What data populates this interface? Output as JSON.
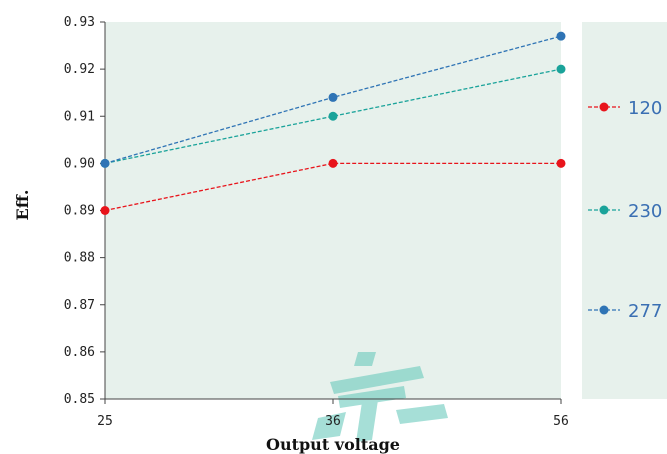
{
  "chart_data": {
    "type": "line",
    "title": "",
    "xlabel": "Output voltage",
    "ylabel": "Eff.",
    "categories": [
      "25",
      "36",
      "56"
    ],
    "ylim": [
      0.85,
      0.93
    ],
    "yticks": [
      "0.85",
      "0.86",
      "0.87",
      "0.88",
      "0.89",
      "0.90",
      "0.91",
      "0.92",
      "0.93"
    ],
    "grid": false,
    "legend_position": "right",
    "series": [
      {
        "name": "120",
        "color": "#e8141b",
        "values": [
          0.89,
          0.9,
          0.9
        ]
      },
      {
        "name": "230",
        "color": "#1aa39a",
        "values": [
          0.9,
          0.91,
          0.92
        ]
      },
      {
        "name": "277",
        "color": "#2f74b5",
        "values": [
          0.9,
          0.914,
          0.927
        ]
      }
    ],
    "colors": {
      "plot_background": "#e7f1ec",
      "legend_background": "#e7f1ec",
      "legend_text": "#3a6fb3",
      "watermark": "#5fc6b8"
    }
  }
}
